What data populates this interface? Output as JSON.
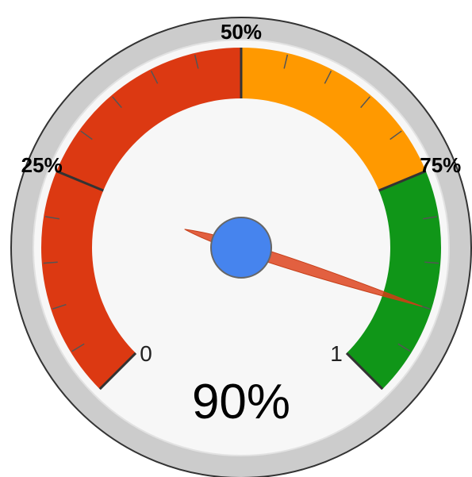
{
  "chart_data": {
    "type": "gauge",
    "value": 0.9,
    "value_label": "90%",
    "min": 0,
    "max": 1,
    "min_label": "0",
    "max_label": "1",
    "major_ticks": [
      {
        "value": 0,
        "label": ""
      },
      {
        "value": 0.25,
        "label": "25%"
      },
      {
        "value": 0.5,
        "label": "50%"
      },
      {
        "value": 0.75,
        "label": "75%"
      },
      {
        "value": 1,
        "label": ""
      }
    ],
    "minor_ticks_per_major": 5,
    "bands": [
      {
        "from": 0,
        "to": 0.5,
        "color": "#dc3912"
      },
      {
        "from": 0.5,
        "to": 0.75,
        "color": "#ff9900"
      },
      {
        "from": 0.75,
        "to": 1,
        "color": "#109618"
      }
    ]
  },
  "colors": {
    "outer_ring": "#cccccc",
    "outer_ring_border": "#333333",
    "inner_face": "#f7f7f7",
    "needle": "#dc3912",
    "needle_hub": "#4684ee"
  }
}
